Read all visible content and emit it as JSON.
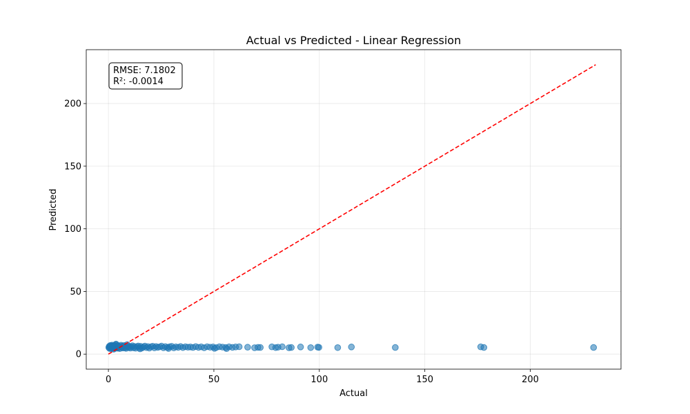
{
  "chart_data": {
    "type": "scatter",
    "title": "Actual vs Predicted - Linear Regression",
    "xlabel": "Actual",
    "ylabel": "Predicted",
    "xlim": [
      -10.5,
      243
    ],
    "ylim": [
      -12,
      243
    ],
    "xticks": [
      0,
      50,
      100,
      150,
      200
    ],
    "yticks": [
      0,
      50,
      100,
      150,
      200
    ],
    "grid": true,
    "annotation": {
      "lines": [
        "RMSE: 7.1802",
        "R²: -0.0014"
      ],
      "placement": "top-left"
    },
    "reference_line": {
      "x": [
        0,
        231
      ],
      "y": [
        0,
        231
      ],
      "color": "#ff0000",
      "style": "dashed"
    },
    "point_color": "#1f77b4",
    "point_alpha": 0.55,
    "series": [
      {
        "points": [
          [
            0.2,
            5.3
          ],
          [
            0.4,
            6.2
          ],
          [
            0.5,
            4.6
          ],
          [
            0.7,
            5.8
          ],
          [
            0.9,
            6.9
          ],
          [
            1.0,
            5.1
          ],
          [
            1.2,
            4.3
          ],
          [
            1.4,
            6.4
          ],
          [
            1.5,
            5.6
          ],
          [
            1.7,
            7.2
          ],
          [
            1.9,
            4.9
          ],
          [
            2.0,
            6.0
          ],
          [
            2.2,
            5.4
          ],
          [
            2.4,
            6.7
          ],
          [
            2.6,
            4.5
          ],
          [
            2.8,
            5.9
          ],
          [
            3.0,
            7.0
          ],
          [
            3.1,
            5.2
          ],
          [
            3.3,
            6.3
          ],
          [
            3.5,
            4.8
          ],
          [
            3.7,
            7.6
          ],
          [
            3.9,
            5.5
          ],
          [
            4.1,
            6.6
          ],
          [
            4.3,
            4.7
          ],
          [
            4.5,
            5.7
          ],
          [
            4.7,
            6.8
          ],
          [
            4.9,
            5.0
          ],
          [
            5.2,
            6.1
          ],
          [
            5.4,
            4.4
          ],
          [
            5.7,
            5.9
          ],
          [
            6.0,
            7.1
          ],
          [
            6.3,
            5.3
          ],
          [
            6.6,
            6.4
          ],
          [
            6.9,
            4.9
          ],
          [
            7.2,
            5.8
          ],
          [
            7.5,
            6.9
          ],
          [
            7.8,
            5.1
          ],
          [
            8.1,
            6.2
          ],
          [
            8.4,
            4.6
          ],
          [
            8.8,
            5.7
          ],
          [
            9.2,
            6.6
          ],
          [
            9.6,
            5.2
          ],
          [
            10.0,
            6.0
          ],
          [
            10.4,
            4.8
          ],
          [
            10.9,
            5.9
          ],
          [
            11.4,
            6.7
          ],
          [
            11.9,
            5.0
          ],
          [
            12.4,
            6.1
          ],
          [
            12.9,
            4.7
          ],
          [
            13.5,
            5.8
          ],
          [
            14.1,
            6.5
          ],
          [
            14.7,
            5.1
          ],
          [
            15.3,
            6.2
          ],
          [
            15.9,
            4.9
          ],
          [
            16.6,
            5.7
          ],
          [
            17.3,
            6.4
          ],
          [
            18.0,
            5.2
          ],
          [
            18.7,
            6.0
          ],
          [
            19.4,
            4.8
          ],
          [
            20.2,
            5.9
          ],
          [
            21.0,
            6.3
          ],
          [
            21.8,
            5.0
          ],
          [
            22.6,
            6.1
          ],
          [
            23.4,
            5.4
          ],
          [
            24.3,
            5.8
          ],
          [
            25.2,
            6.4
          ],
          [
            26.1,
            5.1
          ],
          [
            27.0,
            6.0
          ],
          [
            28.0,
            5.3
          ],
          [
            29.0,
            5.9
          ],
          [
            30.0,
            6.2
          ],
          [
            31.0,
            5.0
          ],
          [
            32.0,
            5.8
          ],
          [
            33.1,
            5.4
          ],
          [
            34.2,
            6.1
          ],
          [
            35.3,
            5.2
          ],
          [
            36.5,
            5.9
          ],
          [
            37.7,
            5.5
          ],
          [
            38.9,
            5.7
          ],
          [
            40.1,
            5.3
          ],
          [
            41.4,
            6.0
          ],
          [
            42.7,
            5.4
          ],
          [
            44.0,
            5.8
          ],
          [
            45.4,
            5.1
          ],
          [
            46.8,
            5.9
          ],
          [
            48.2,
            5.5
          ],
          [
            49.6,
            5.7
          ],
          [
            51.1,
            5.2
          ],
          [
            52.6,
            5.9
          ],
          [
            54.1,
            5.6
          ],
          [
            55.6,
            5.3
          ],
          [
            57.2,
            5.8
          ],
          [
            58.8,
            5.4
          ],
          [
            60.3,
            5.7
          ],
          [
            62.0,
            5.9
          ],
          [
            66.0,
            5.5
          ],
          [
            69.3,
            5.1
          ],
          [
            70.9,
            5.4
          ],
          [
            72.0,
            5.3
          ],
          [
            77.5,
            5.8
          ],
          [
            79.3,
            5.2
          ],
          [
            80.4,
            5.5
          ],
          [
            82.4,
            5.9
          ],
          [
            85.6,
            5.1
          ],
          [
            86.7,
            5.3
          ],
          [
            91.1,
            5.7
          ],
          [
            95.9,
            5.2
          ],
          [
            99.2,
            5.6
          ],
          [
            99.8,
            5.4
          ],
          [
            108.7,
            5.2
          ],
          [
            115.2,
            5.7
          ],
          [
            136.0,
            5.3
          ],
          [
            176.5,
            5.8
          ],
          [
            178.0,
            5.3
          ],
          [
            230.0,
            5.3
          ],
          [
            3.6,
            8.0
          ],
          [
            8.9,
            7.6
          ],
          [
            2.5,
            3.9
          ],
          [
            15.0,
            4.2
          ],
          [
            28.5,
            4.5
          ],
          [
            50.3,
            4.6
          ],
          [
            56.0,
            4.4
          ]
        ]
      }
    ]
  }
}
